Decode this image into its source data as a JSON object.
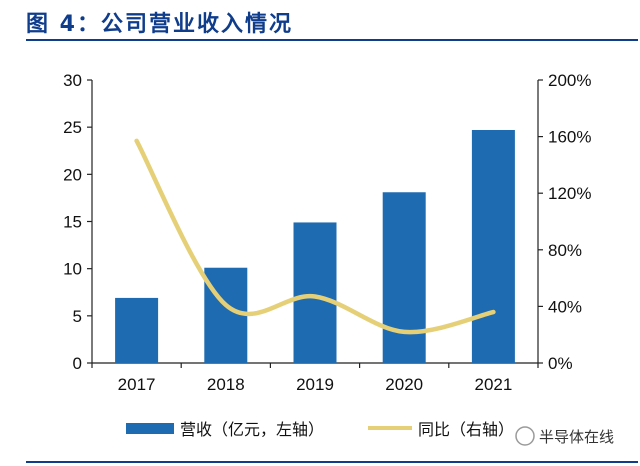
{
  "title": "图 4：公司营业收入情况",
  "chart_data": {
    "type": "bar+line",
    "categories": [
      "2017",
      "2018",
      "2019",
      "2020",
      "2021"
    ],
    "series": [
      {
        "name": "营收（亿元，左轴）",
        "type": "bar",
        "axis": "left",
        "color": "#1f6bb1",
        "values": [
          6.9,
          10.1,
          14.9,
          18.1,
          24.7
        ]
      },
      {
        "name": "同比（右轴）",
        "type": "line",
        "axis": "right",
        "color": "#e5d078",
        "values": [
          157,
          41,
          47,
          22,
          36
        ]
      }
    ],
    "y_left": {
      "min": 0,
      "max": 30,
      "ticks": [
        "0",
        "5",
        "10",
        "15",
        "20",
        "25",
        "30"
      ]
    },
    "y_right": {
      "min": 0,
      "max": 200,
      "ticks": [
        "0%",
        "40%",
        "80%",
        "120%",
        "160%",
        "200%"
      ]
    },
    "legend": "bottom"
  },
  "watermark": "半导体在线"
}
